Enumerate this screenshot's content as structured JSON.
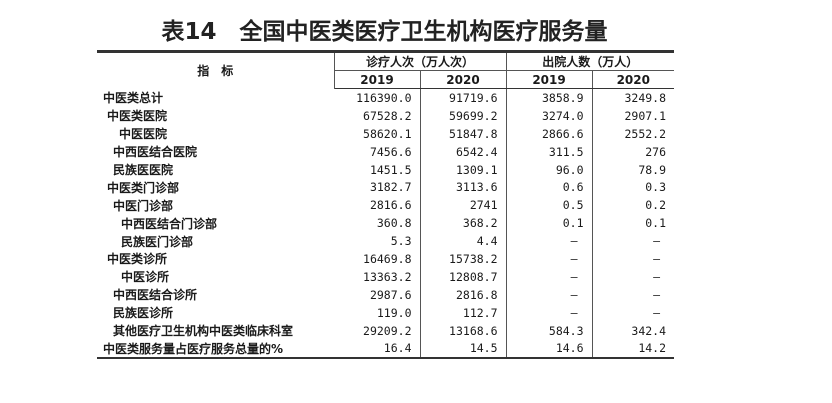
{
  "title": "表14　全国中医类医疗卫生机构医疗服务量",
  "header": {
    "indicator": "指　标",
    "visits": "诊疗人次（万人次）",
    "discharges": "出院人数（万人）",
    "years": [
      "2019",
      "2020",
      "2019",
      "2020"
    ]
  },
  "rows": [
    {
      "name": "中医类总计",
      "values": [
        "116390.0",
        "91719.6",
        "3858.9",
        "3249.8"
      ]
    },
    {
      "name": "中医类医院",
      "values": [
        "67528.2",
        "59699.2",
        "3274.0",
        "2907.1"
      ]
    },
    {
      "name": "中医医院",
      "values": [
        "58620.1",
        "51847.8",
        "2866.6",
        "2552.2"
      ]
    },
    {
      "name": "中西医结合医院",
      "values": [
        "7456.6",
        "6542.4",
        "311.5",
        "276"
      ]
    },
    {
      "name": "民族医医院",
      "values": [
        "1451.5",
        "1309.1",
        "96.0",
        "78.9"
      ]
    },
    {
      "name": "中医类门诊部",
      "values": [
        "3182.7",
        "3113.6",
        "0.6",
        "0.3"
      ]
    },
    {
      "name": "中医门诊部",
      "values": [
        "2816.6",
        "2741",
        "0.5",
        "0.2"
      ]
    },
    {
      "name": "中西医结合门诊部",
      "values": [
        "360.8",
        "368.2",
        "0.1",
        "0.1"
      ]
    },
    {
      "name": "民族医门诊部",
      "values": [
        "5.3",
        "4.4",
        "–",
        "–"
      ]
    },
    {
      "name": "中医类诊所",
      "values": [
        "16469.8",
        "15738.2",
        "–",
        "–"
      ]
    },
    {
      "name": "中医诊所",
      "values": [
        "13363.2",
        "12808.7",
        "–",
        "–"
      ]
    },
    {
      "name": "中西医结合诊所",
      "values": [
        "2987.6",
        "2816.8",
        "–",
        "–"
      ]
    },
    {
      "name": "民族医诊所",
      "values": [
        "119.0",
        "112.7",
        "–",
        "–"
      ]
    },
    {
      "name": "其他医疗卫生机构中医类临床科室",
      "values": [
        "29209.2",
        "13168.6",
        "584.3",
        "342.4"
      ]
    },
    {
      "name": "中医类服务量占医疗服务总量的%",
      "values": [
        "16.4",
        "14.5",
        "14.6",
        "14.2"
      ]
    }
  ]
}
